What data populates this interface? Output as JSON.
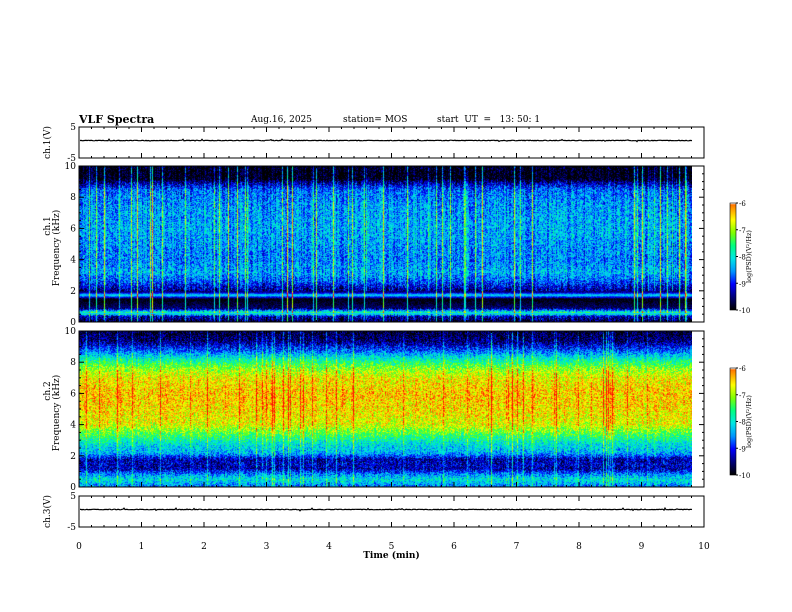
{
  "header": {
    "title": "VLF Spectra",
    "date": "Aug.16, 2025",
    "station": "station= MOS",
    "start": "start  UT  =   13: 50: 1"
  },
  "colors": {
    "colormap": [
      "#000000",
      "#00007a",
      "#0000ff",
      "#0096ff",
      "#00e6e6",
      "#00ff7f",
      "#7fff00",
      "#ffff00",
      "#ff8c00",
      "#ff0000",
      "#ffffff"
    ]
  },
  "chart_data": [
    {
      "type": "line",
      "name": "ch1-waveform",
      "ylabel": "ch.1(V)",
      "ylim": [
        -5,
        5
      ],
      "y_ticks": [
        "5",
        "-5"
      ],
      "level": 0,
      "xlim": [
        0,
        10
      ]
    },
    {
      "type": "heatmap",
      "name": "ch1-spectrogram",
      "ylabel_top": "ch.1",
      "ylabel": "Frequency (kHz)",
      "ylim": [
        0,
        10
      ],
      "y_ticks": [
        "0",
        "2",
        "4",
        "6",
        "8",
        "10"
      ],
      "xlim": [
        0,
        9.85
      ],
      "colorbar": {
        "label": "log(PSD)(V²/Hz)",
        "range": [
          -10,
          -6
        ],
        "ticks": [
          "-6",
          "-7",
          "-8",
          "-9",
          "-10"
        ]
      },
      "profile_khz": [
        [
          0.0,
          -9.8
        ],
        [
          0.4,
          -9.3
        ],
        [
          0.6,
          -7.6
        ],
        [
          0.9,
          -9.6
        ],
        [
          1.5,
          -10.0
        ],
        [
          1.75,
          -8.2
        ],
        [
          1.95,
          -9.6
        ],
        [
          2.6,
          -8.9
        ],
        [
          3.2,
          -8.5
        ],
        [
          4.0,
          -8.7
        ],
        [
          5.0,
          -8.6
        ],
        [
          6.0,
          -8.5
        ],
        [
          7.5,
          -8.6
        ],
        [
          8.5,
          -8.8
        ],
        [
          9.0,
          -9.5
        ],
        [
          9.2,
          -10.0
        ],
        [
          10.0,
          -10.0
        ]
      ]
    },
    {
      "type": "heatmap",
      "name": "ch2-spectrogram",
      "ylabel_top": "ch.2",
      "ylabel": "Frequency (kHz)",
      "ylim": [
        0,
        10
      ],
      "y_ticks": [
        "0",
        "2",
        "4",
        "6",
        "8",
        "10"
      ],
      "xlim": [
        0,
        9.85
      ],
      "colorbar": {
        "label": "log(PSD)(V²/Hz)",
        "range": [
          -10,
          -6
        ],
        "ticks": [
          "-6",
          "-7",
          "-8",
          "-9",
          "-10"
        ]
      },
      "profile_khz": [
        [
          0.0,
          -8.8
        ],
        [
          0.5,
          -8.2
        ],
        [
          0.8,
          -8.6
        ],
        [
          1.2,
          -9.4
        ],
        [
          1.5,
          -9.3
        ],
        [
          1.8,
          -9.4
        ],
        [
          2.2,
          -8.5
        ],
        [
          2.8,
          -8.2
        ],
        [
          3.2,
          -7.8
        ],
        [
          4.0,
          -7.0
        ],
        [
          5.0,
          -6.8
        ],
        [
          6.0,
          -6.7
        ],
        [
          7.0,
          -6.9
        ],
        [
          7.6,
          -7.3
        ],
        [
          8.2,
          -8.0
        ],
        [
          8.8,
          -8.9
        ],
        [
          9.4,
          -9.6
        ],
        [
          10.0,
          -9.8
        ]
      ]
    },
    {
      "type": "line",
      "name": "ch3-waveform",
      "ylabel": "ch.3(V)",
      "ylim": [
        -5,
        5
      ],
      "y_ticks": [
        "5",
        "-5"
      ],
      "level": 0,
      "xlim": [
        0,
        10
      ]
    }
  ],
  "x_axis": {
    "label": "Time (min)",
    "range": [
      0,
      10
    ],
    "ticks": [
      "0",
      "1",
      "2",
      "3",
      "4",
      "5",
      "6",
      "7",
      "8",
      "9",
      "10"
    ]
  }
}
